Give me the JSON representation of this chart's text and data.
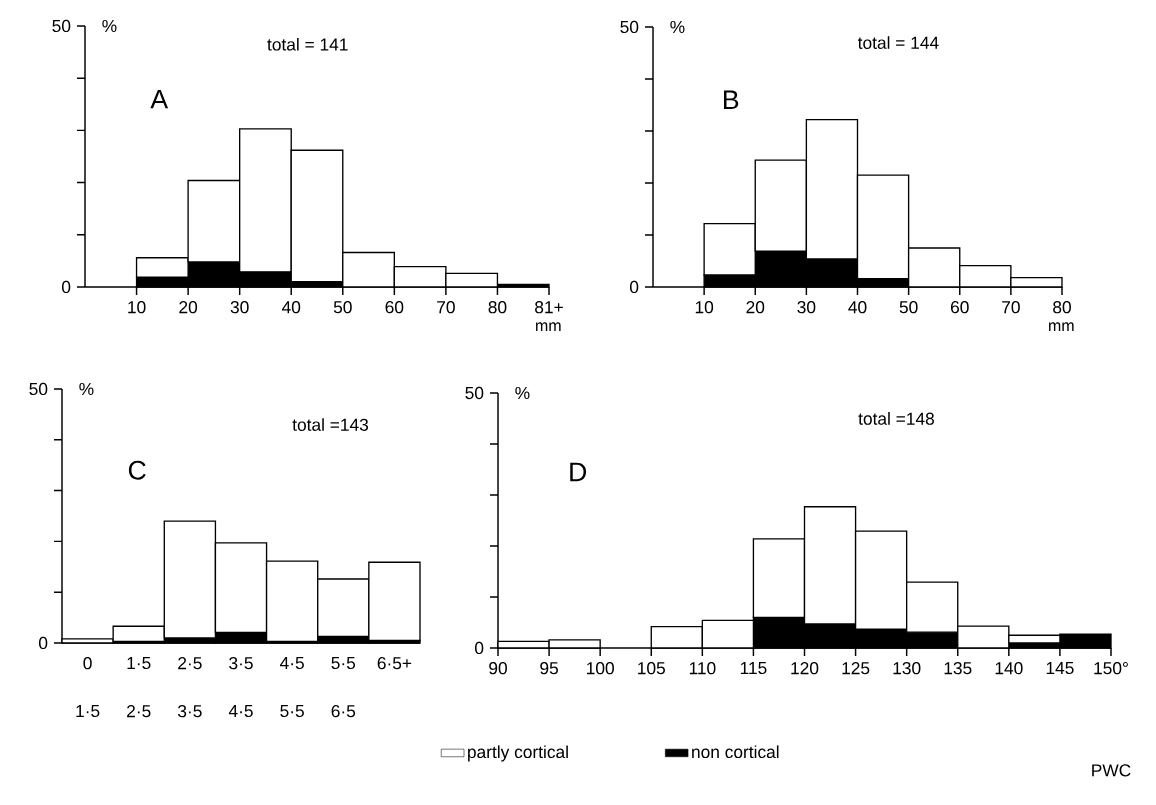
{
  "chart_data": [
    {
      "type": "bar",
      "title": "A",
      "subtitle": "total = 141",
      "xlabel": "mm",
      "ylabel": "%",
      "stacked": true,
      "x": [
        15,
        25,
        35,
        45,
        55,
        65,
        75,
        85
      ],
      "series": [
        {
          "color": "#000000",
          "values": [
            1.9,
            4.8,
            2.9,
            1.0,
            0,
            0,
            0,
            0.5
          ]
        },
        {
          "color": "#ffffff",
          "values": [
            3.7,
            15.6,
            27.4,
            25.2,
            6.6,
            3.9,
            2.6,
            0
          ]
        }
      ],
      "xlim": [
        0,
        90
      ],
      "xticks": [
        10,
        20,
        30,
        40,
        50,
        60,
        70,
        80,
        {
          "value": 90,
          "label": "81+"
        }
      ],
      "ylim": [
        0,
        50
      ],
      "yticks": [
        0,
        {
          "value": 10,
          "label": null
        },
        {
          "value": 20,
          "label": null
        },
        {
          "value": 30,
          "label": null
        },
        {
          "value": 40,
          "label": null
        },
        50
      ]
    },
    {
      "type": "bar",
      "title": "B",
      "subtitle": "total = 144",
      "xlabel": "mm",
      "ylabel": "%",
      "stacked": true,
      "x": [
        15,
        25,
        35,
        45,
        55,
        65,
        75
      ],
      "series": [
        {
          "color": "#000000",
          "values": [
            2.3,
            6.9,
            5.4,
            1.6,
            0,
            0,
            0
          ]
        },
        {
          "color": "#ffffff",
          "values": [
            9.9,
            17.5,
            26.8,
            19.9,
            7.5,
            4.1,
            1.8
          ]
        }
      ],
      "xlim": [
        0,
        80
      ],
      "xticks": [
        10,
        20,
        30,
        40,
        50,
        60,
        70,
        80
      ],
      "ylim": [
        0,
        50
      ],
      "yticks": [
        0,
        {
          "value": 10,
          "label": null
        },
        {
          "value": 20,
          "label": null
        },
        {
          "value": 30,
          "label": null
        },
        {
          "value": 40,
          "label": null
        },
        50
      ]
    },
    {
      "type": "bar",
      "title": "C",
      "subtitle": "total =143",
      "ylabel": "%",
      "stacked": true,
      "categories": [
        "0",
        "1·5",
        "2·5",
        "3·5",
        "4·5",
        "5·5",
        "6·5+"
      ],
      "annotations": [
        "1·5",
        "2·5",
        "3·5",
        "4·5",
        "5·5",
        "6·5"
      ],
      "series": [
        {
          "color": "#000000",
          "values": [
            0,
            0.3,
            1.0,
            2.1,
            0.3,
            1.3,
            0.5
          ]
        },
        {
          "color": "#ffffff",
          "values": [
            0.8,
            3.0,
            23.0,
            17.6,
            15.8,
            11.3,
            15.4
          ]
        }
      ],
      "ylim": [
        0,
        50
      ],
      "yticks": [
        0,
        {
          "value": 10,
          "label": null
        },
        {
          "value": 20,
          "label": null
        },
        {
          "value": 30,
          "label": null
        },
        {
          "value": 40,
          "label": null
        },
        50
      ]
    },
    {
      "type": "bar",
      "title": "D",
      "subtitle": "total =148",
      "ylabel": "%",
      "stacked": true,
      "legend": "bottom",
      "annotations": [
        "PWC"
      ],
      "x": [
        92.5,
        97.5,
        102.5,
        107.5,
        112.5,
        117.5,
        122.5,
        127.5,
        132.5,
        137.5,
        142.5,
        147.5
      ],
      "series": [
        {
          "name": "non cortical",
          "color": "#000000",
          "values": [
            0,
            0,
            0,
            0,
            0,
            6.0,
            4.7,
            3.7,
            3.1,
            0,
            1.0,
            2.7
          ]
        },
        {
          "name": "partly cortical",
          "color": "#ffffff",
          "values": [
            1.3,
            1.6,
            0,
            4.2,
            5.4,
            15.4,
            23.0,
            19.2,
            9.8,
            4.3,
            1.5,
            0
          ]
        }
      ],
      "xlim": [
        90,
        150
      ],
      "xticks": [
        90,
        95,
        100,
        105,
        110,
        115,
        120,
        125,
        130,
        135,
        140,
        145,
        {
          "value": 150,
          "label": "150°"
        }
      ],
      "ylim": [
        0,
        50
      ],
      "yticks": [
        0,
        {
          "value": 10,
          "label": null
        },
        {
          "value": 20,
          "label": null
        },
        {
          "value": 30,
          "label": null
        },
        {
          "value": 40,
          "label": null
        },
        50
      ]
    }
  ]
}
